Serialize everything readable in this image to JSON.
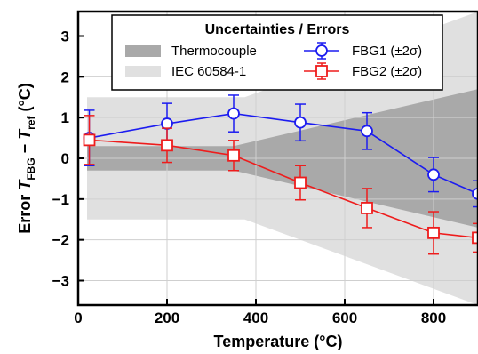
{
  "chart_data": {
    "type": "line",
    "xlabel": "Temperature (°C)",
    "ylabel_prefix": "Error ",
    "ylabel_T": "T",
    "ylabel_sub1": "FBG",
    "ylabel_minus": " − ",
    "ylabel_sub2": "ref",
    "ylabel_suffix": " (°C)",
    "xlim": [
      0,
      900
    ],
    "ylim": [
      -3.6,
      3.6
    ],
    "xticks": [
      0,
      200,
      400,
      600,
      800
    ],
    "yticks": [
      -3,
      -2,
      -1,
      0,
      1,
      2,
      3
    ],
    "grid": true,
    "legend": {
      "title": "Uncertainties / Errors",
      "placement": "top-right",
      "entries": [
        "Thermocouple",
        "IEC 60584-1",
        "FBG1 (±2σ)",
        "FBG2 (±2σ)"
      ]
    },
    "bands": [
      {
        "name": "Thermocouple",
        "color": "#a9a9a9",
        "x": [
          20,
          350,
          900
        ],
        "lower": [
          -0.3,
          -0.3,
          -1.7
        ],
        "upper": [
          0.3,
          0.3,
          1.7
        ]
      },
      {
        "name": "IEC 60584-1",
        "color": "#e0e0e0",
        "x": [
          20,
          375,
          900
        ],
        "lower": [
          -1.5,
          -1.5,
          -3.6
        ],
        "upper": [
          1.5,
          1.5,
          3.6
        ]
      }
    ],
    "series": [
      {
        "name": "FBG1 (±2σ)",
        "color": "#1c1cf0",
        "marker": "circle",
        "x": [
          25,
          200,
          350,
          500,
          650,
          800,
          900
        ],
        "y": [
          0.5,
          0.85,
          1.1,
          0.88,
          0.67,
          -0.4,
          -0.87
        ],
        "err": [
          0.68,
          0.5,
          0.45,
          0.45,
          0.45,
          0.42,
          0.32
        ]
      },
      {
        "name": "FBG2 (±2σ)",
        "color": "#ee1c1c",
        "marker": "square",
        "x": [
          25,
          200,
          350,
          500,
          650,
          800,
          900
        ],
        "y": [
          0.45,
          0.32,
          0.07,
          -0.6,
          -1.22,
          -1.83,
          -1.95
        ],
        "err": [
          0.6,
          0.42,
          0.37,
          0.42,
          0.48,
          0.52,
          0.35
        ]
      }
    ]
  }
}
